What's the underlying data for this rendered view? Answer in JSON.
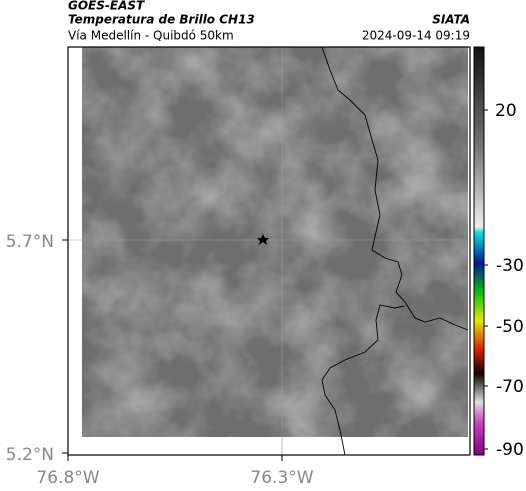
{
  "header": {
    "title": "GOES-EAST",
    "subtitle": "Temperatura de Brillo CH13",
    "route": "Vía Medellín - Quibdó 50km",
    "source": "SIATA",
    "datetime": "2024-09-14 09:19"
  },
  "map": {
    "lat_labels": [
      "5.7°N",
      "5.2°N"
    ],
    "lon_labels": [
      "76.8°W",
      "76.3°W"
    ]
  },
  "colorbar": {
    "labels": [
      "20",
      "-30",
      "-50",
      "-70",
      "-90"
    ]
  }
}
